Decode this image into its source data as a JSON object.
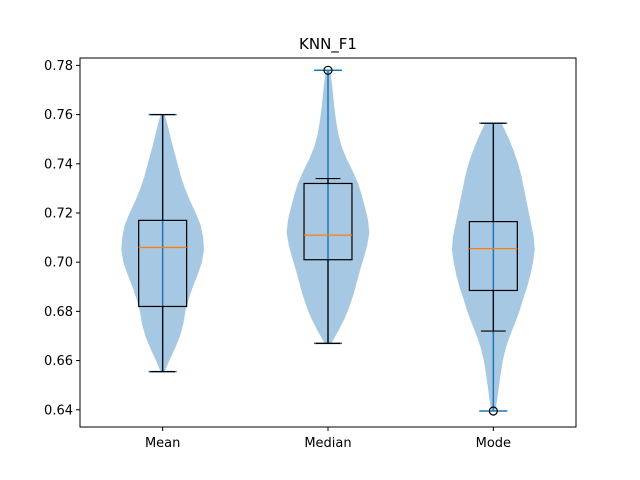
{
  "chart_data": {
    "type": "violin",
    "title": "KNN_F1",
    "xlabel": "",
    "ylabel": "",
    "categories": [
      "Mean",
      "Median",
      "Mode"
    ],
    "ylim": [
      0.633,
      0.783
    ],
    "yticks": [
      0.64,
      0.66,
      0.68,
      0.7,
      0.72,
      0.74,
      0.76,
      0.78
    ],
    "ytick_labels": [
      "0.64",
      "0.66",
      "0.68",
      "0.70",
      "0.72",
      "0.74",
      "0.76",
      "0.78"
    ],
    "grid": false,
    "legend": "none",
    "series": [
      {
        "category": "Mean",
        "min": 0.6555,
        "q1": 0.682,
        "median": 0.706,
        "q3": 0.717,
        "max": 0.76,
        "whisker_low": 0.6555,
        "whisker_high": 0.76,
        "outliers": [],
        "density": [
          [
            0.6555,
            0.05
          ],
          [
            0.66,
            0.16
          ],
          [
            0.665,
            0.3
          ],
          [
            0.67,
            0.42
          ],
          [
            0.675,
            0.5
          ],
          [
            0.68,
            0.55
          ],
          [
            0.685,
            0.63
          ],
          [
            0.69,
            0.73
          ],
          [
            0.695,
            0.85
          ],
          [
            0.7,
            0.95
          ],
          [
            0.705,
            1.0
          ],
          [
            0.71,
            0.98
          ],
          [
            0.715,
            0.92
          ],
          [
            0.72,
            0.8
          ],
          [
            0.725,
            0.66
          ],
          [
            0.73,
            0.54
          ],
          [
            0.735,
            0.44
          ],
          [
            0.74,
            0.36
          ],
          [
            0.745,
            0.28
          ],
          [
            0.75,
            0.2
          ],
          [
            0.755,
            0.13
          ],
          [
            0.76,
            0.05
          ]
        ]
      },
      {
        "category": "Median",
        "min": 0.667,
        "q1": 0.701,
        "median": 0.711,
        "q3": 0.732,
        "max": 0.778,
        "whisker_low": 0.667,
        "whisker_high": 0.734,
        "outliers": [
          0.778
        ],
        "density": [
          [
            0.667,
            0.08
          ],
          [
            0.672,
            0.25
          ],
          [
            0.677,
            0.4
          ],
          [
            0.682,
            0.52
          ],
          [
            0.687,
            0.62
          ],
          [
            0.692,
            0.7
          ],
          [
            0.697,
            0.78
          ],
          [
            0.702,
            0.87
          ],
          [
            0.707,
            0.95
          ],
          [
            0.712,
            1.0
          ],
          [
            0.717,
            0.97
          ],
          [
            0.722,
            0.9
          ],
          [
            0.727,
            0.82
          ],
          [
            0.732,
            0.73
          ],
          [
            0.737,
            0.6
          ],
          [
            0.742,
            0.45
          ],
          [
            0.747,
            0.33
          ],
          [
            0.752,
            0.25
          ],
          [
            0.757,
            0.2
          ],
          [
            0.762,
            0.16
          ],
          [
            0.767,
            0.13
          ],
          [
            0.772,
            0.1
          ],
          [
            0.778,
            0.05
          ]
        ]
      },
      {
        "category": "Mode",
        "min": 0.6395,
        "q1": 0.6885,
        "median": 0.7055,
        "q3": 0.7165,
        "max": 0.7565,
        "whisker_low": 0.672,
        "whisker_high": 0.7565,
        "outliers": [
          0.6395
        ],
        "density": [
          [
            0.6395,
            0.05
          ],
          [
            0.645,
            0.1
          ],
          [
            0.65,
            0.14
          ],
          [
            0.655,
            0.18
          ],
          [
            0.66,
            0.23
          ],
          [
            0.665,
            0.3
          ],
          [
            0.67,
            0.4
          ],
          [
            0.675,
            0.52
          ],
          [
            0.68,
            0.63
          ],
          [
            0.685,
            0.72
          ],
          [
            0.69,
            0.82
          ],
          [
            0.695,
            0.9
          ],
          [
            0.7,
            0.96
          ],
          [
            0.705,
            1.0
          ],
          [
            0.71,
            0.98
          ],
          [
            0.715,
            0.92
          ],
          [
            0.72,
            0.86
          ],
          [
            0.725,
            0.8
          ],
          [
            0.73,
            0.74
          ],
          [
            0.735,
            0.68
          ],
          [
            0.74,
            0.6
          ],
          [
            0.745,
            0.5
          ],
          [
            0.75,
            0.38
          ],
          [
            0.7565,
            0.2
          ]
        ]
      }
    ],
    "colors": {
      "violin_fill": "#a6c8e3",
      "violin_line": "#1f77b4",
      "box": "#000000",
      "median": "#ff7f0e"
    }
  }
}
